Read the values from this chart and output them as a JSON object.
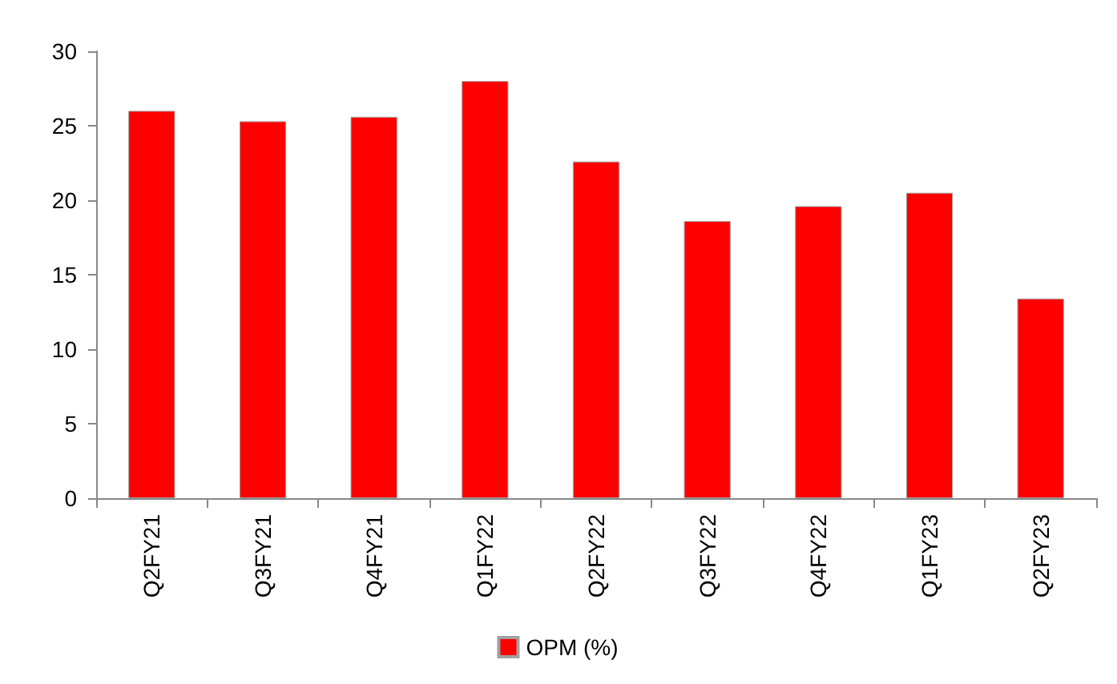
{
  "chart_data": {
    "type": "bar",
    "categories": [
      "Q2FY21",
      "Q3FY21",
      "Q4FY21",
      "Q1FY22",
      "Q2FY22",
      "Q3FY22",
      "Q4FY22",
      "Q1FY23",
      "Q2FY23"
    ],
    "series": [
      {
        "name": "OPM (%)",
        "color": "#ff0000",
        "values": [
          26.0,
          25.3,
          25.6,
          28.0,
          22.6,
          18.6,
          19.6,
          20.5,
          13.4
        ]
      }
    ],
    "ylim": [
      0,
      30
    ],
    "yticks": [
      0,
      5,
      10,
      15,
      20,
      25,
      30
    ],
    "grid": false,
    "legend": "bottom"
  }
}
